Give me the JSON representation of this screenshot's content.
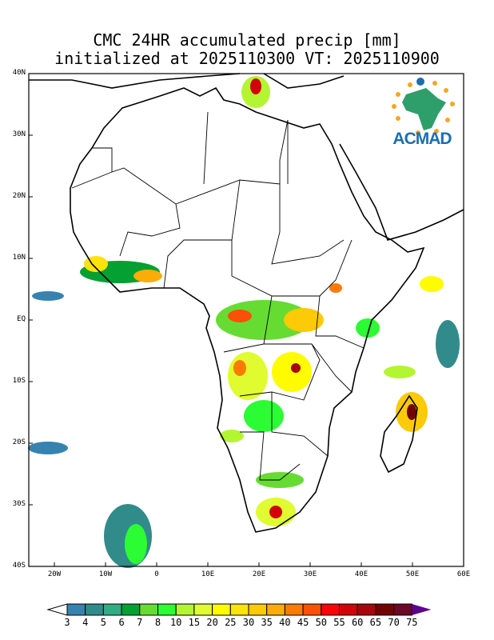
{
  "title": {
    "line1": "CMC 24HR accumulated precip [mm]",
    "line2": "initialized at 2025110300 VT: 2025110900"
  },
  "axes": {
    "lat_labels": [
      "40N",
      "30N",
      "20N",
      "10N",
      "EQ",
      "10S",
      "20S",
      "30S",
      "40S"
    ],
    "lon_labels": [
      "20W",
      "10W",
      "0",
      "10E",
      "20E",
      "30E",
      "40E",
      "50E",
      "60E"
    ]
  },
  "logo": {
    "text": "ACMAD"
  },
  "colorbar": {
    "labels": [
      "3",
      "4",
      "5",
      "6",
      "7",
      "8",
      "10",
      "15",
      "20",
      "25",
      "30",
      "35",
      "40",
      "45",
      "50",
      "55",
      "60",
      "65",
      "70",
      "75"
    ],
    "colors": [
      "#3783b0",
      "#328b8b",
      "#33ab84",
      "#04a032",
      "#66dc33",
      "#2cfc34",
      "#b4f532",
      "#e0fc31",
      "#fffc00",
      "#fce30c",
      "#fcca06",
      "#fcac08",
      "#fc7b05",
      "#fc5009",
      "#fc0309",
      "#d00409",
      "#a8050c",
      "#720303",
      "#6c0725",
      "#5c048c"
    ]
  }
}
